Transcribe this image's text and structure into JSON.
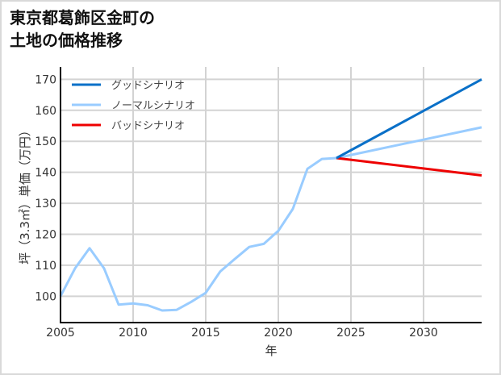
{
  "title": {
    "line1": "東京都葛飾区金町の",
    "line2": "土地の価格推移"
  },
  "colors": {
    "good": "#0a70c8",
    "normal": "#99ccff",
    "bad": "#ee0000",
    "grid": "#d3d3d3",
    "axis": "#000000",
    "border": "#d9d9d9"
  },
  "chart_data": {
    "type": "line",
    "title": "東京都葛飾区金町の土地の価格推移",
    "xlabel": "年",
    "ylabel": "坪（3.3㎡）単価（万円）",
    "xlim": [
      2005,
      2034
    ],
    "ylim": [
      91.5,
      174
    ],
    "xticks": [
      2005,
      2010,
      2015,
      2020,
      2025,
      2030
    ],
    "yticks": [
      100,
      110,
      120,
      130,
      140,
      150,
      160,
      170
    ],
    "grid": true,
    "legend_position": "upper left",
    "historical": {
      "x": [
        2005,
        2006,
        2007,
        2008,
        2009,
        2010,
        2011,
        2012,
        2013,
        2014,
        2015,
        2016,
        2017,
        2018,
        2019,
        2020,
        2021,
        2022,
        2023,
        2024
      ],
      "values": [
        100.0,
        109.0,
        115.5,
        109.0,
        97.3,
        97.7,
        97.1,
        95.4,
        95.6,
        98.2,
        101.1,
        108.0,
        112.0,
        115.9,
        116.9,
        121.1,
        128.2,
        141.1,
        144.3,
        144.6
      ]
    },
    "series": [
      {
        "name": "グッドシナリオ",
        "color": "#0a70c8",
        "x": [
          2024,
          2034
        ],
        "values": [
          144.6,
          170.0
        ]
      },
      {
        "name": "ノーマルシナリオ",
        "color": "#99ccff",
        "x": [
          2024,
          2034
        ],
        "values": [
          144.6,
          154.5
        ]
      },
      {
        "name": "バッドシナリオ",
        "color": "#ee0000",
        "x": [
          2024,
          2034
        ],
        "values": [
          144.6,
          139.0
        ]
      }
    ]
  }
}
